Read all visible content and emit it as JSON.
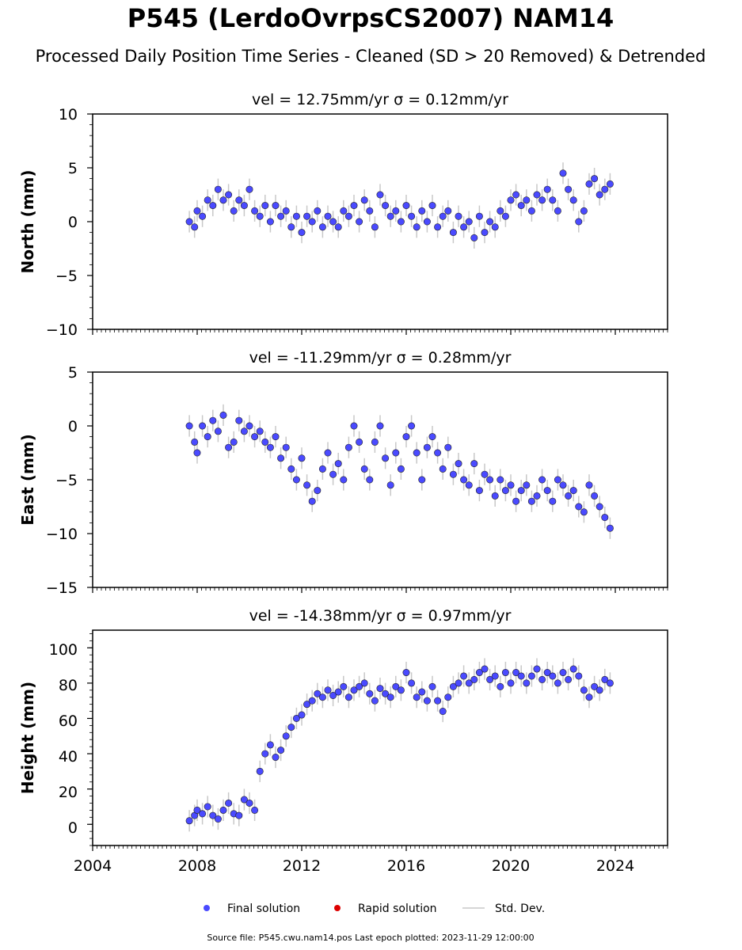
{
  "figure": {
    "title": "P545 (LerdoOvrpsCS2007) NAM14",
    "subtitle": "Processed Daily Position Time Series - Cleaned (SD > 20 Removed) & Detrended",
    "footer": "Source file: P545.cwu.nam14.pos  Last epoch plotted: 2023-11-29 12:00:00"
  },
  "legend": {
    "final_label": "Final solution",
    "rapid_label": "Rapid solution",
    "std_label": "Std. Dev."
  },
  "colors": {
    "final": "#4a4aff",
    "rapid": "#dd0000",
    "std": "#c8c8c8",
    "marker_edge": "#222222"
  },
  "panels": [
    {
      "title": "vel = 12.75mm/yr   σ = 0.12mm/yr",
      "ylabel": "North (mm)",
      "yticks": [
        "10",
        "5",
        "0",
        "−5",
        "−10"
      ]
    },
    {
      "title": "vel = -11.29mm/yr   σ = 0.28mm/yr",
      "ylabel": "East (mm)",
      "yticks": [
        "5",
        "0",
        "−5",
        "−10",
        "−15"
      ]
    },
    {
      "title": "vel = -14.38mm/yr   σ = 0.97mm/yr",
      "ylabel": "Height (mm)",
      "yticks": [
        "100",
        "80",
        "60",
        "40",
        "20",
        "0"
      ]
    }
  ],
  "xticks": [
    "2004",
    "2008",
    "2012",
    "2016",
    "2020",
    "2024"
  ],
  "chart_data": [
    {
      "type": "scatter",
      "component": "North",
      "ylabel": "North (mm)",
      "title": "vel = 12.75mm/yr   σ = 0.12mm/yr",
      "xlim": [
        2004.0,
        2026.0
      ],
      "ylim": [
        -10,
        10
      ],
      "yticks": [
        -10,
        -5,
        0,
        5,
        10
      ],
      "xticks": [
        2004,
        2008,
        2012,
        2016,
        2020,
        2024
      ],
      "series": [
        {
          "name": "Final solution",
          "x": [
            2007.7,
            2007.9,
            2008.0,
            2008.2,
            2008.4,
            2008.6,
            2008.8,
            2009.0,
            2009.2,
            2009.4,
            2009.6,
            2009.8,
            2010.0,
            2010.2,
            2010.4,
            2010.6,
            2010.8,
            2011.0,
            2011.2,
            2011.4,
            2011.6,
            2011.8,
            2012.0,
            2012.2,
            2012.4,
            2012.6,
            2012.8,
            2013.0,
            2013.2,
            2013.4,
            2013.6,
            2013.8,
            2014.0,
            2014.2,
            2014.4,
            2014.6,
            2014.8,
            2015.0,
            2015.2,
            2015.4,
            2015.6,
            2015.8,
            2016.0,
            2016.2,
            2016.4,
            2016.6,
            2016.8,
            2017.0,
            2017.2,
            2017.4,
            2017.6,
            2017.8,
            2018.0,
            2018.2,
            2018.4,
            2018.6,
            2018.8,
            2019.0,
            2019.2,
            2019.4,
            2019.6,
            2019.8,
            2020.0,
            2020.2,
            2020.4,
            2020.6,
            2020.8,
            2021.0,
            2021.2,
            2021.4,
            2021.6,
            2021.8,
            2022.0,
            2022.2,
            2022.4,
            2022.6,
            2022.8,
            2023.0,
            2023.2,
            2023.4,
            2023.6,
            2023.8
          ],
          "y": [
            0.0,
            -0.5,
            1.0,
            0.5,
            2.0,
            1.5,
            3.0,
            2.0,
            2.5,
            1.0,
            2.0,
            1.5,
            3.0,
            1.0,
            0.5,
            1.5,
            0.0,
            1.5,
            0.5,
            1.0,
            -0.5,
            0.5,
            -1.0,
            0.5,
            0.0,
            1.0,
            -0.5,
            0.5,
            0.0,
            -0.5,
            1.0,
            0.5,
            1.5,
            0.0,
            2.0,
            1.0,
            -0.5,
            2.5,
            1.5,
            0.5,
            1.0,
            0.0,
            1.5,
            0.5,
            -0.5,
            1.0,
            0.0,
            1.5,
            -0.5,
            0.5,
            1.0,
            -1.0,
            0.5,
            -0.5,
            0.0,
            -1.5,
            0.5,
            -1.0,
            0.0,
            -0.5,
            1.0,
            0.5,
            2.0,
            2.5,
            1.5,
            2.0,
            1.0,
            2.5,
            2.0,
            3.0,
            2.0,
            1.0,
            4.5,
            3.0,
            2.0,
            0.0,
            1.0,
            3.5,
            4.0,
            2.5,
            3.0,
            3.5
          ]
        }
      ]
    },
    {
      "type": "scatter",
      "component": "East",
      "ylabel": "East (mm)",
      "title": "vel = -11.29mm/yr   σ = 0.28mm/yr",
      "xlim": [
        2004.0,
        2026.0
      ],
      "ylim": [
        -15,
        5
      ],
      "yticks": [
        -15,
        -10,
        -5,
        0,
        5
      ],
      "xticks": [
        2004,
        2008,
        2012,
        2016,
        2020,
        2024
      ],
      "series": [
        {
          "name": "Final solution",
          "x": [
            2007.7,
            2007.9,
            2008.0,
            2008.2,
            2008.4,
            2008.6,
            2008.8,
            2009.0,
            2009.2,
            2009.4,
            2009.6,
            2009.8,
            2010.0,
            2010.2,
            2010.4,
            2010.6,
            2010.8,
            2011.0,
            2011.2,
            2011.4,
            2011.6,
            2011.8,
            2012.0,
            2012.2,
            2012.4,
            2012.6,
            2012.8,
            2013.0,
            2013.2,
            2013.4,
            2013.6,
            2013.8,
            2014.0,
            2014.2,
            2014.4,
            2014.6,
            2014.8,
            2015.0,
            2015.2,
            2015.4,
            2015.6,
            2015.8,
            2016.0,
            2016.2,
            2016.4,
            2016.6,
            2016.8,
            2017.0,
            2017.2,
            2017.4,
            2017.6,
            2017.8,
            2018.0,
            2018.2,
            2018.4,
            2018.6,
            2018.8,
            2019.0,
            2019.2,
            2019.4,
            2019.6,
            2019.8,
            2020.0,
            2020.2,
            2020.4,
            2020.6,
            2020.8,
            2021.0,
            2021.2,
            2021.4,
            2021.6,
            2021.8,
            2022.0,
            2022.2,
            2022.4,
            2022.6,
            2022.8,
            2023.0,
            2023.2,
            2023.4,
            2023.6,
            2023.8
          ],
          "y": [
            0.0,
            -1.5,
            -2.5,
            0.0,
            -1.0,
            0.5,
            -0.5,
            1.0,
            -2.0,
            -1.5,
            0.5,
            -0.5,
            0.0,
            -1.0,
            -0.5,
            -1.5,
            -2.0,
            -1.0,
            -3.0,
            -2.0,
            -4.0,
            -5.0,
            -3.0,
            -5.5,
            -7.0,
            -6.0,
            -4.0,
            -2.5,
            -4.5,
            -3.5,
            -5.0,
            -2.0,
            0.0,
            -1.5,
            -4.0,
            -5.0,
            -1.5,
            0.0,
            -3.0,
            -5.5,
            -2.5,
            -4.0,
            -1.0,
            0.0,
            -2.5,
            -5.0,
            -2.0,
            -1.0,
            -2.5,
            -4.0,
            -2.0,
            -4.5,
            -3.5,
            -5.0,
            -5.5,
            -3.5,
            -6.0,
            -4.5,
            -5.0,
            -6.5,
            -5.0,
            -6.0,
            -5.5,
            -7.0,
            -6.0,
            -5.5,
            -7.0,
            -6.5,
            -5.0,
            -6.0,
            -7.0,
            -5.0,
            -5.5,
            -6.5,
            -6.0,
            -7.5,
            -8.0,
            -5.5,
            -6.5,
            -7.5,
            -8.5,
            -9.5
          ]
        }
      ]
    },
    {
      "type": "scatter",
      "component": "Height",
      "ylabel": "Height (mm)",
      "title": "vel = -14.38mm/yr   σ = 0.97mm/yr",
      "xlim": [
        2004.0,
        2026.0
      ],
      "ylim": [
        -12,
        110
      ],
      "yticks": [
        0,
        20,
        40,
        60,
        80,
        100
      ],
      "xticks": [
        2004,
        2008,
        2012,
        2016,
        2020,
        2024
      ],
      "series": [
        {
          "name": "Final solution",
          "x": [
            2007.7,
            2007.9,
            2008.0,
            2008.2,
            2008.4,
            2008.6,
            2008.8,
            2009.0,
            2009.2,
            2009.4,
            2009.6,
            2009.8,
            2010.0,
            2010.2,
            2010.4,
            2010.6,
            2010.8,
            2011.0,
            2011.2,
            2011.4,
            2011.6,
            2011.8,
            2012.0,
            2012.2,
            2012.4,
            2012.6,
            2012.8,
            2013.0,
            2013.2,
            2013.4,
            2013.6,
            2013.8,
            2014.0,
            2014.2,
            2014.4,
            2014.6,
            2014.8,
            2015.0,
            2015.2,
            2015.4,
            2015.6,
            2015.8,
            2016.0,
            2016.2,
            2016.4,
            2016.6,
            2016.8,
            2017.0,
            2017.2,
            2017.4,
            2017.6,
            2017.8,
            2018.0,
            2018.2,
            2018.4,
            2018.6,
            2018.8,
            2019.0,
            2019.2,
            2019.4,
            2019.6,
            2019.8,
            2020.0,
            2020.2,
            2020.4,
            2020.6,
            2020.8,
            2021.0,
            2021.2,
            2021.4,
            2021.6,
            2021.8,
            2022.0,
            2022.2,
            2022.4,
            2022.6,
            2022.8,
            2023.0,
            2023.2,
            2023.4,
            2023.6,
            2023.8
          ],
          "y": [
            2.0,
            5.0,
            8.0,
            6.0,
            10.0,
            5.0,
            3.0,
            8.0,
            12.0,
            6.0,
            5.0,
            14.0,
            12.0,
            8.0,
            30.0,
            40.0,
            45.0,
            38.0,
            42.0,
            50.0,
            55.0,
            60.0,
            62.0,
            68.0,
            70.0,
            74.0,
            72.0,
            76.0,
            73.0,
            75.0,
            78.0,
            72.0,
            76.0,
            78.0,
            80.0,
            74.0,
            70.0,
            77.0,
            74.0,
            72.0,
            78.0,
            76.0,
            86.0,
            80.0,
            72.0,
            75.0,
            70.0,
            78.0,
            70.0,
            64.0,
            72.0,
            78.0,
            80.0,
            84.0,
            80.0,
            82.0,
            86.0,
            88.0,
            82.0,
            84.0,
            78.0,
            86.0,
            80.0,
            86.0,
            84.0,
            80.0,
            84.0,
            88.0,
            82.0,
            86.0,
            84.0,
            80.0,
            86.0,
            82.0,
            88.0,
            84.0,
            76.0,
            72.0,
            78.0,
            76.0,
            82.0,
            80.0
          ]
        }
      ]
    }
  ]
}
